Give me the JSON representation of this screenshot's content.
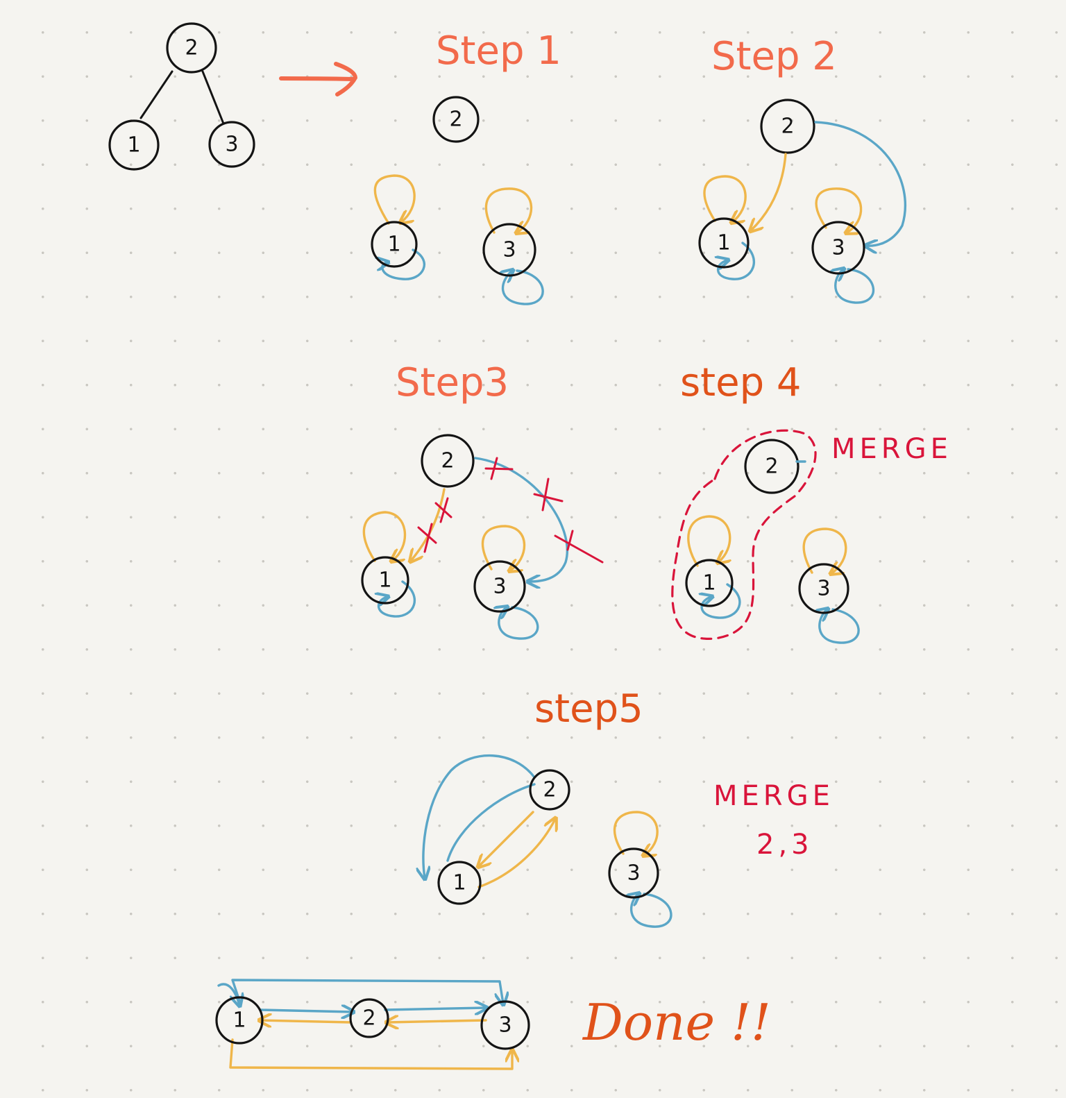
{
  "labels": {
    "step1": "Step 1",
    "step2": "Step 2",
    "step3": "Step3",
    "step4": "step 4",
    "step5": "step5",
    "merge_step4": "MERGE",
    "merge_step5_line1": "MERGE",
    "merge_step5_line2": "2,3",
    "done": "Done !!"
  },
  "nodes": {
    "one": "1",
    "two": "2",
    "three": "3"
  },
  "colors": {
    "heading": "#f26a4b",
    "heading_dark": "#e0521a",
    "node_stroke": "#141414",
    "left_pointer": "#efb64a",
    "right_pointer": "#5aa6c7",
    "merge_mark": "#d9143a",
    "background": "#f5f4f0"
  }
}
